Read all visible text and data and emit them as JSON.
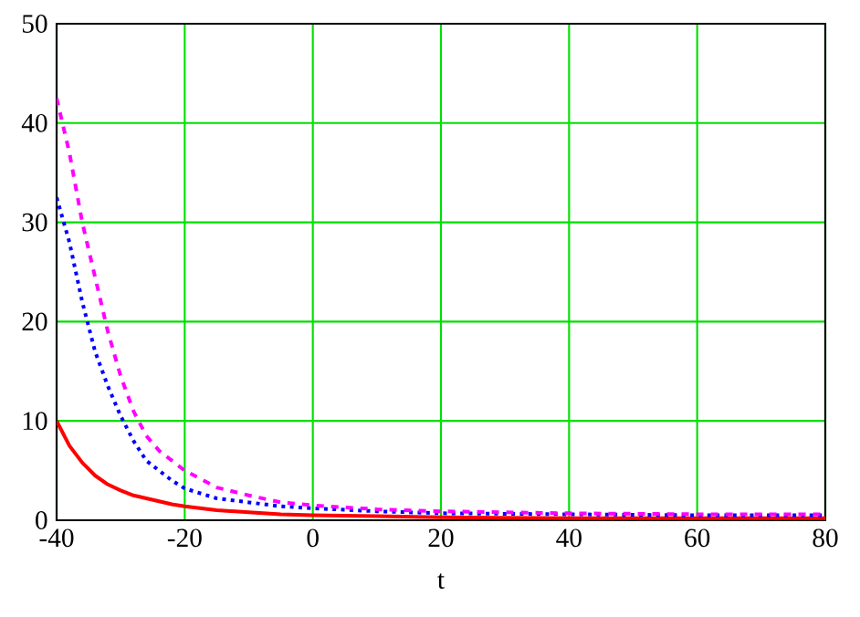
{
  "chart_data": {
    "type": "line",
    "xlabel": "t",
    "xlim": [
      -40,
      80
    ],
    "ylim": [
      0,
      50
    ],
    "xticks": [
      -40,
      -20,
      0,
      20,
      40,
      60,
      80
    ],
    "yticks": [
      0,
      10,
      20,
      30,
      40,
      50
    ],
    "grid": true,
    "marker": "none",
    "x": [
      -40,
      -38,
      -36,
      -34,
      -32,
      -30,
      -28,
      -26,
      -24,
      -22,
      -20,
      -15,
      -10,
      -5,
      0,
      10,
      20,
      40,
      60,
      80
    ],
    "series": [
      {
        "color": "#ff0000",
        "line_style": "solid",
        "values": [
          10,
          7.5,
          5.8,
          4.5,
          3.6,
          3.0,
          2.5,
          2.2,
          1.9,
          1.6,
          1.4,
          1.0,
          0.8,
          0.6,
          0.5,
          0.4,
          0.3,
          0.2,
          0.2,
          0.2
        ]
      },
      {
        "color": "#0000ff",
        "line_style": "dotted",
        "values": [
          32.5,
          28,
          22,
          17,
          13.5,
          10.5,
          8,
          6,
          5,
          4,
          3.2,
          2.2,
          1.8,
          1.4,
          1.2,
          0.9,
          0.7,
          0.6,
          0.5,
          0.5
        ]
      },
      {
        "color": "#ff00ff",
        "line_style": "dashed",
        "values": [
          42.5,
          37,
          30,
          24.5,
          19,
          14.5,
          11,
          8.5,
          7,
          6,
          5,
          3.3,
          2.5,
          1.8,
          1.5,
          1.1,
          0.9,
          0.7,
          0.6,
          0.6
        ]
      }
    ]
  }
}
